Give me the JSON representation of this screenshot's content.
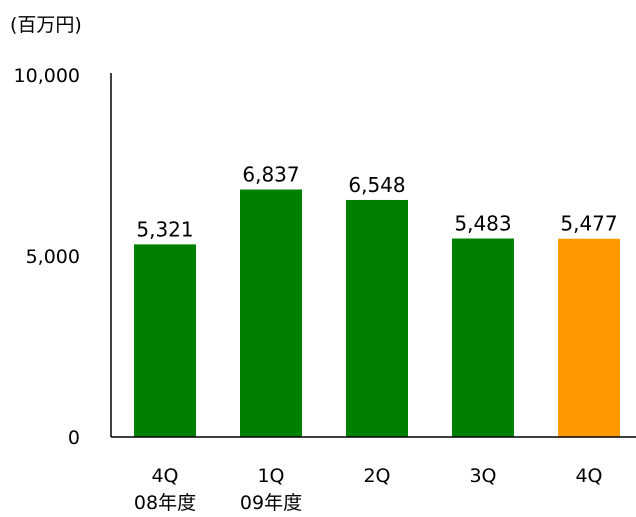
{
  "chart_data": {
    "type": "bar",
    "unit_label": "(百万円)",
    "ylim": [
      0,
      10000
    ],
    "y_ticks": [
      {
        "value": 0,
        "label": "0"
      },
      {
        "value": 5000,
        "label": "5,000"
      },
      {
        "value": 10000,
        "label": "10,000"
      }
    ],
    "categories": [
      {
        "line1": "4Q",
        "line2": "08年度"
      },
      {
        "line1": "1Q",
        "line2": "09年度"
      },
      {
        "line1": "2Q",
        "line2": ""
      },
      {
        "line1": "3Q",
        "line2": ""
      },
      {
        "line1": "4Q",
        "line2": ""
      }
    ],
    "values": [
      5321,
      6837,
      6548,
      5483,
      5477
    ],
    "value_labels": [
      "5,321",
      "6,837",
      "6,548",
      "5,483",
      "5,477"
    ],
    "bar_colors": [
      "#008000",
      "#008000",
      "#008000",
      "#008000",
      "#FF9900"
    ],
    "grid": false,
    "legend": "none"
  }
}
